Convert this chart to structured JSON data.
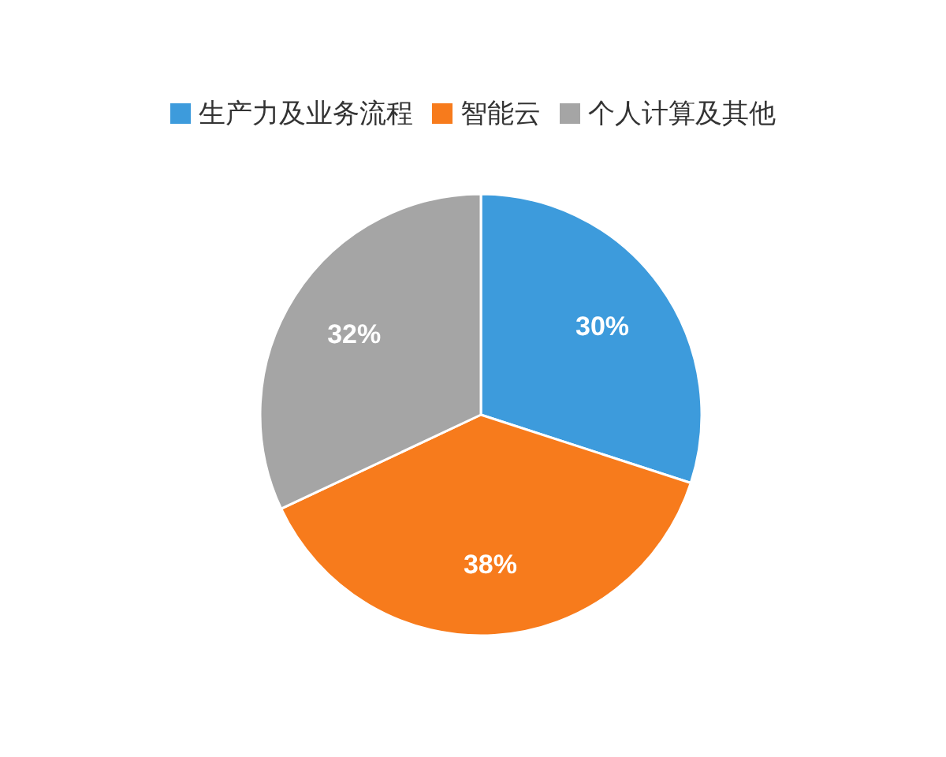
{
  "chart_data": {
    "type": "pie",
    "categories": [
      "生产力及业务流程",
      "智能云",
      "个人计算及其他"
    ],
    "values": [
      30,
      38,
      32
    ],
    "colors": [
      "#3d9bdc",
      "#f77b1c",
      "#a5a5a5"
    ],
    "value_labels": [
      "30%",
      "38%",
      "32%"
    ],
    "legend": "top"
  }
}
